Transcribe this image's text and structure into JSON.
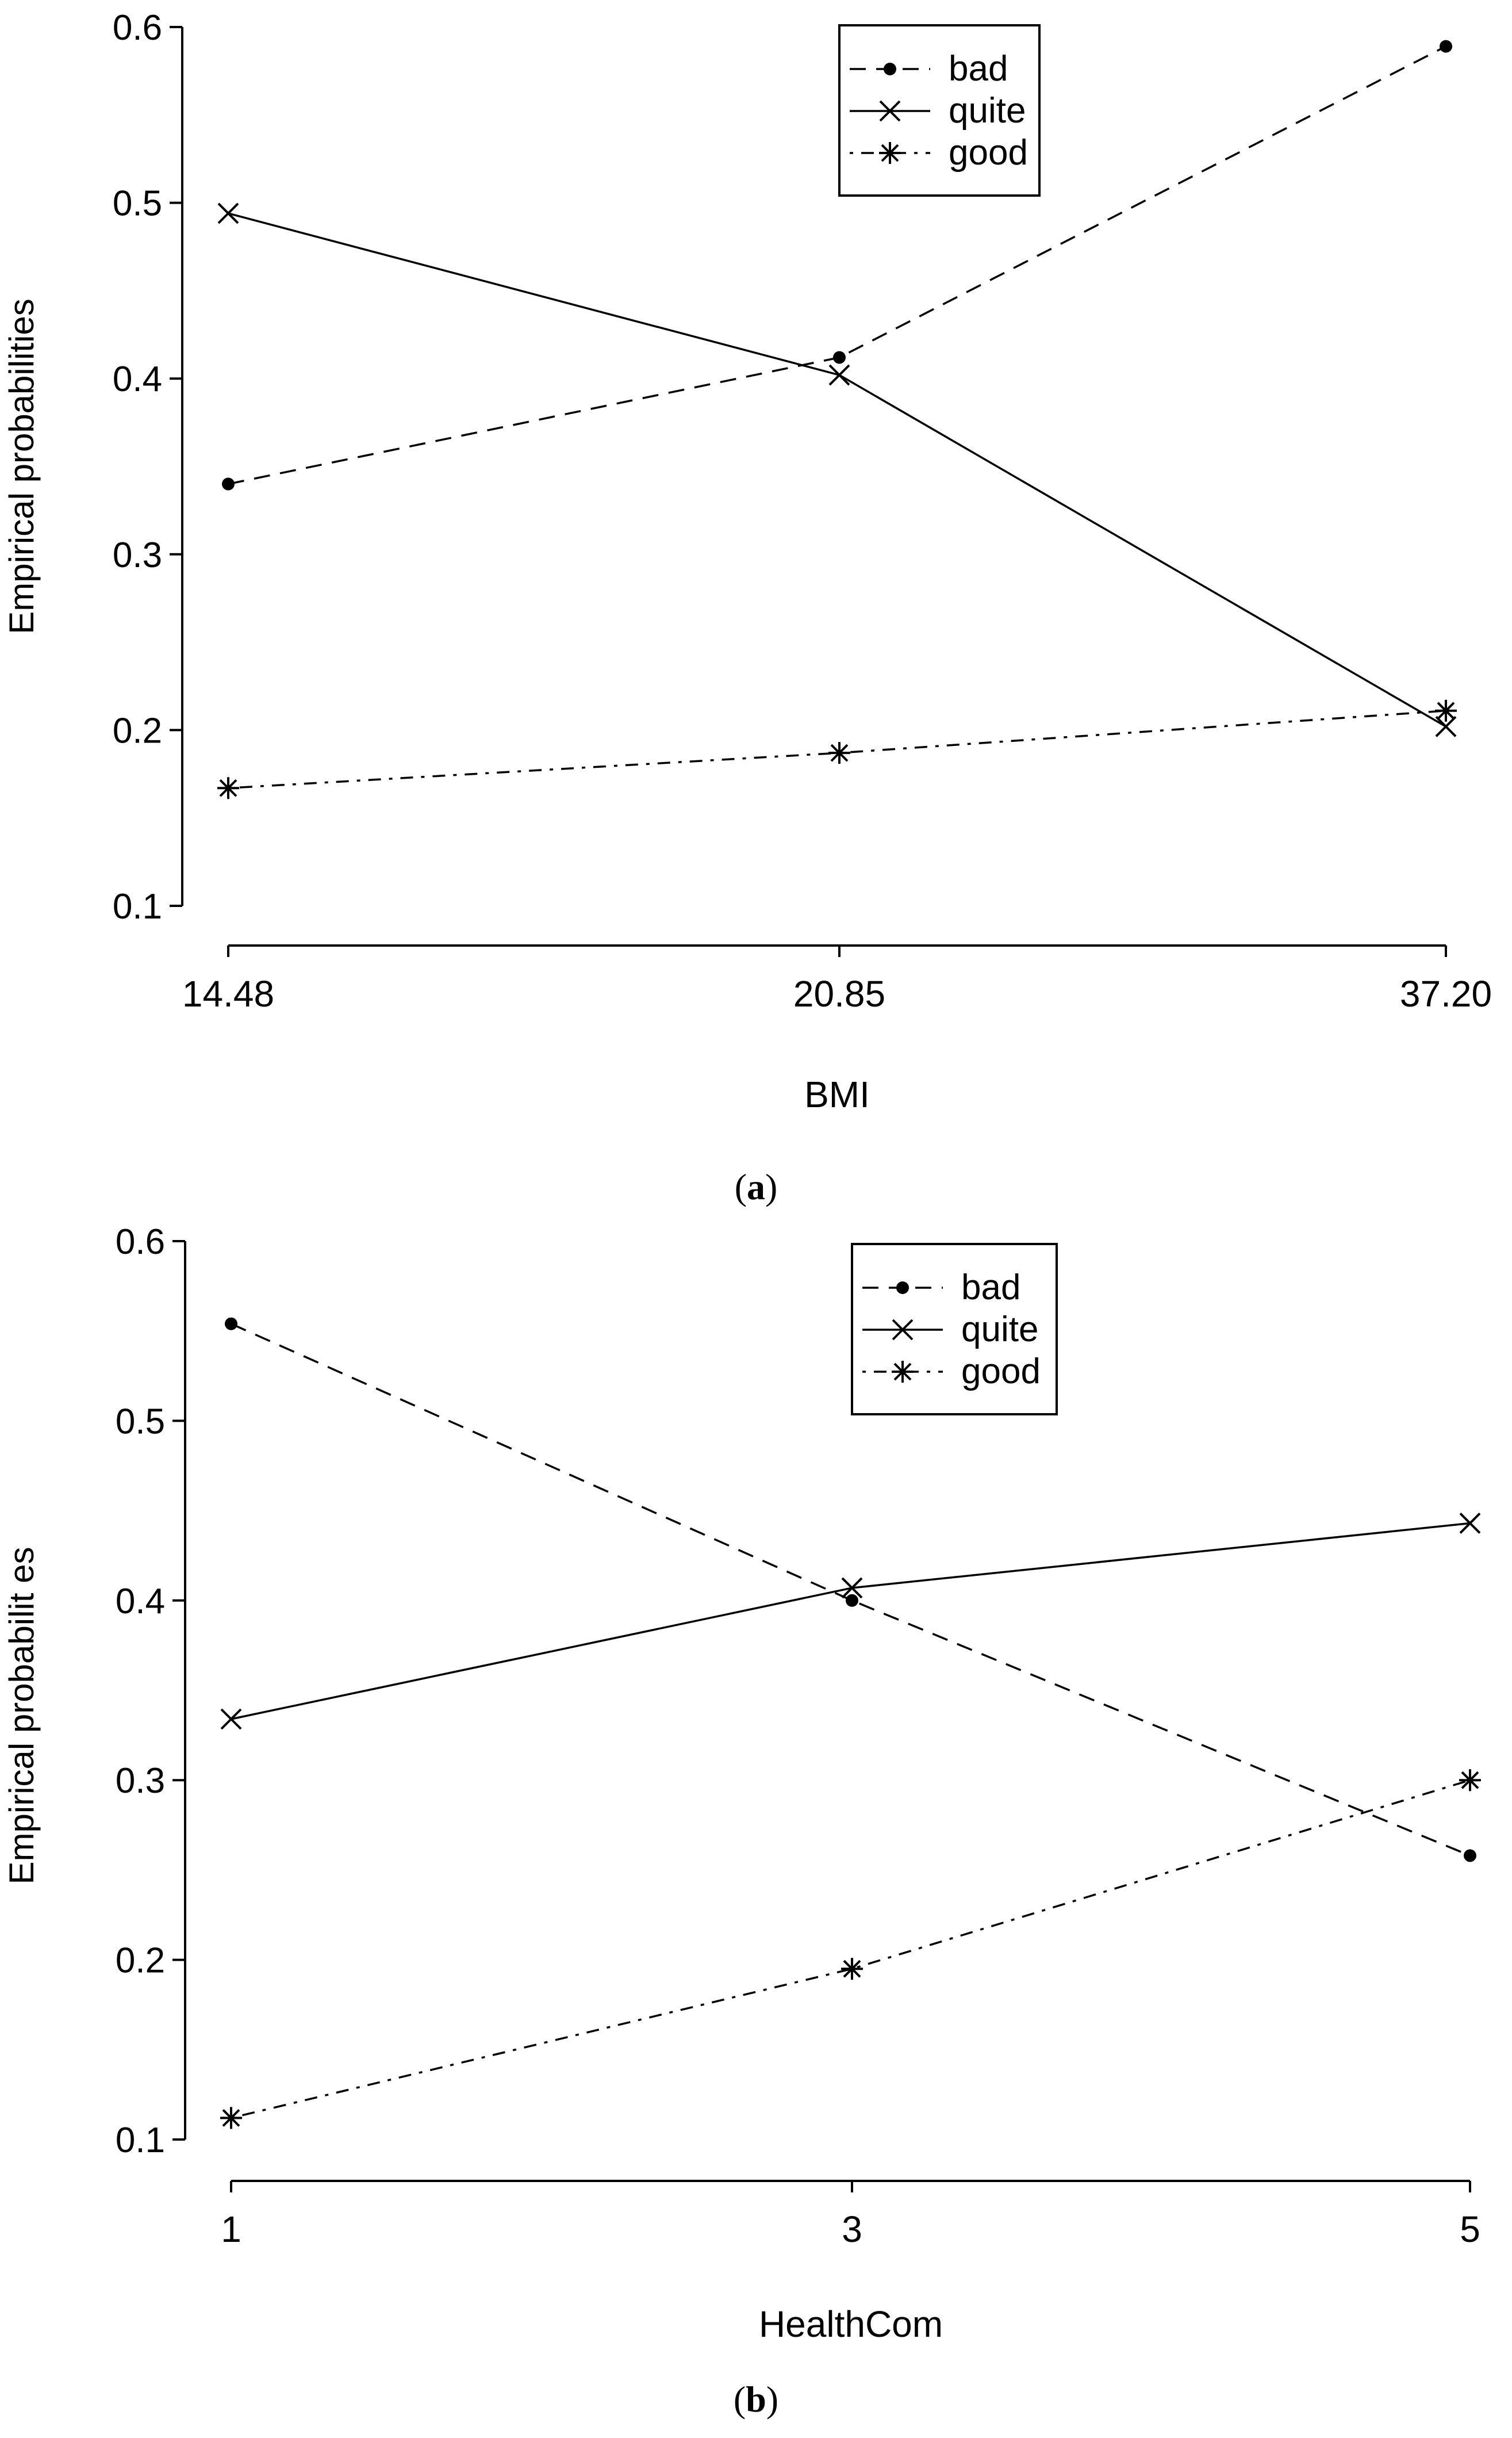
{
  "chart_data": [
    {
      "type": "line",
      "panel_label": "a",
      "xlabel": "BMI",
      "ylabel": "Empirical probabilities",
      "categories": [
        "14.48",
        "20.85",
        "37.20"
      ],
      "ylim": [
        0.1,
        0.6
      ],
      "yticks": [
        "0.1",
        "0.2",
        "0.3",
        "0.4",
        "0.5",
        "0.6"
      ],
      "legend_position": "top-right",
      "series": [
        {
          "name": "bad",
          "marker": "dot",
          "dash": "dashed",
          "values": [
            0.34,
            0.412,
            0.589
          ]
        },
        {
          "name": "quite",
          "marker": "x",
          "dash": "solid",
          "values": [
            0.494,
            0.402,
            0.202
          ]
        },
        {
          "name": "good",
          "marker": "asterisk",
          "dash": "dotdash",
          "values": [
            0.167,
            0.187,
            0.211
          ]
        }
      ]
    },
    {
      "type": "line",
      "panel_label": "b",
      "xlabel": "HealthCom",
      "ylabel": "Empirical probabilit es",
      "categories": [
        "1",
        "3",
        "5"
      ],
      "ylim": [
        0.1,
        0.6
      ],
      "yticks": [
        "0.1",
        "0.2",
        "0.3",
        "0.4",
        "0.5",
        "0.6"
      ],
      "legend_position": "top-right",
      "series": [
        {
          "name": "bad",
          "marker": "dot",
          "dash": "dashed",
          "values": [
            0.554,
            0.4,
            0.258
          ]
        },
        {
          "name": "quite",
          "marker": "x",
          "dash": "solid",
          "values": [
            0.334,
            0.407,
            0.443
          ]
        },
        {
          "name": "good",
          "marker": "asterisk",
          "dash": "dotdash",
          "values": [
            0.112,
            0.195,
            0.3
          ]
        }
      ]
    }
  ]
}
